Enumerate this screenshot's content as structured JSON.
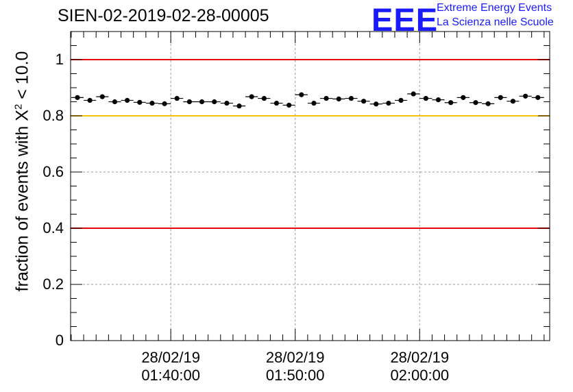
{
  "title": "SIEN-02-2019-02-28-00005",
  "logo": {
    "mark": "EEE",
    "line1": "Extreme Energy Events",
    "line2": "La Scienza nelle Scuole"
  },
  "chart_data": {
    "type": "scatter",
    "ylabel_prefix": "fraction of events with X",
    "ylabel_sup": "2",
    "ylabel_suffix": " < 10.0",
    "ylim": [
      0,
      1.1
    ],
    "yticks": [
      {
        "value": 0,
        "label": "0"
      },
      {
        "value": 0.2,
        "label": "0.2"
      },
      {
        "value": 0.4,
        "label": "0.4"
      },
      {
        "value": 0.6,
        "label": "0.6"
      },
      {
        "value": 0.8,
        "label": "0.8"
      },
      {
        "value": 1,
        "label": "1"
      }
    ],
    "xlim": [
      "2019-02-28 01:31:57",
      "2019-02-28 02:10:27"
    ],
    "xticks": [
      {
        "time": "2019-02-28 01:40:00",
        "label_date": "28/02/19",
        "label_time": "01:40:00"
      },
      {
        "time": "2019-02-28 01:50:00",
        "label_date": "28/02/19",
        "label_time": "01:50:00"
      },
      {
        "time": "2019-02-28 02:00:00",
        "label_date": "28/02/19",
        "label_time": "02:00:00"
      }
    ],
    "grid": true,
    "reference_lines": [
      {
        "y": 1.0,
        "color": "#e60000"
      },
      {
        "y": 0.8,
        "color": "#ffc000"
      },
      {
        "y": 0.4,
        "color": "#e60000"
      }
    ],
    "series": [
      {
        "color": "#000000",
        "points": [
          {
            "x": "2019-02-28 01:32:30",
            "y": 0.865
          },
          {
            "x": "2019-02-28 01:33:30",
            "y": 0.855
          },
          {
            "x": "2019-02-28 01:34:30",
            "y": 0.868
          },
          {
            "x": "2019-02-28 01:35:30",
            "y": 0.85
          },
          {
            "x": "2019-02-28 01:36:30",
            "y": 0.855
          },
          {
            "x": "2019-02-28 01:37:30",
            "y": 0.848
          },
          {
            "x": "2019-02-28 01:38:30",
            "y": 0.845
          },
          {
            "x": "2019-02-28 01:39:30",
            "y": 0.843
          },
          {
            "x": "2019-02-28 01:40:30",
            "y": 0.862
          },
          {
            "x": "2019-02-28 01:41:30",
            "y": 0.85
          },
          {
            "x": "2019-02-28 01:42:30",
            "y": 0.85
          },
          {
            "x": "2019-02-28 01:43:30",
            "y": 0.85
          },
          {
            "x": "2019-02-28 01:44:30",
            "y": 0.845
          },
          {
            "x": "2019-02-28 01:45:30",
            "y": 0.835
          },
          {
            "x": "2019-02-28 01:46:30",
            "y": 0.868
          },
          {
            "x": "2019-02-28 01:47:30",
            "y": 0.862
          },
          {
            "x": "2019-02-28 01:48:30",
            "y": 0.845
          },
          {
            "x": "2019-02-28 01:49:30",
            "y": 0.838
          },
          {
            "x": "2019-02-28 01:50:30",
            "y": 0.875
          },
          {
            "x": "2019-02-28 01:51:30",
            "y": 0.845
          },
          {
            "x": "2019-02-28 01:52:30",
            "y": 0.862
          },
          {
            "x": "2019-02-28 01:53:30",
            "y": 0.86
          },
          {
            "x": "2019-02-28 01:54:30",
            "y": 0.862
          },
          {
            "x": "2019-02-28 01:55:30",
            "y": 0.852
          },
          {
            "x": "2019-02-28 01:56:30",
            "y": 0.842
          },
          {
            "x": "2019-02-28 01:57:30",
            "y": 0.845
          },
          {
            "x": "2019-02-28 01:58:30",
            "y": 0.855
          },
          {
            "x": "2019-02-28 01:59:30",
            "y": 0.878
          },
          {
            "x": "2019-02-28 02:00:30",
            "y": 0.862
          },
          {
            "x": "2019-02-28 02:01:30",
            "y": 0.857
          },
          {
            "x": "2019-02-28 02:02:30",
            "y": 0.847
          },
          {
            "x": "2019-02-28 02:03:30",
            "y": 0.865
          },
          {
            "x": "2019-02-28 02:04:30",
            "y": 0.847
          },
          {
            "x": "2019-02-28 02:05:30",
            "y": 0.843
          },
          {
            "x": "2019-02-28 02:06:30",
            "y": 0.865
          },
          {
            "x": "2019-02-28 02:07:30",
            "y": 0.852
          },
          {
            "x": "2019-02-28 02:08:30",
            "y": 0.87
          },
          {
            "x": "2019-02-28 02:09:30",
            "y": 0.865
          }
        ]
      }
    ]
  }
}
